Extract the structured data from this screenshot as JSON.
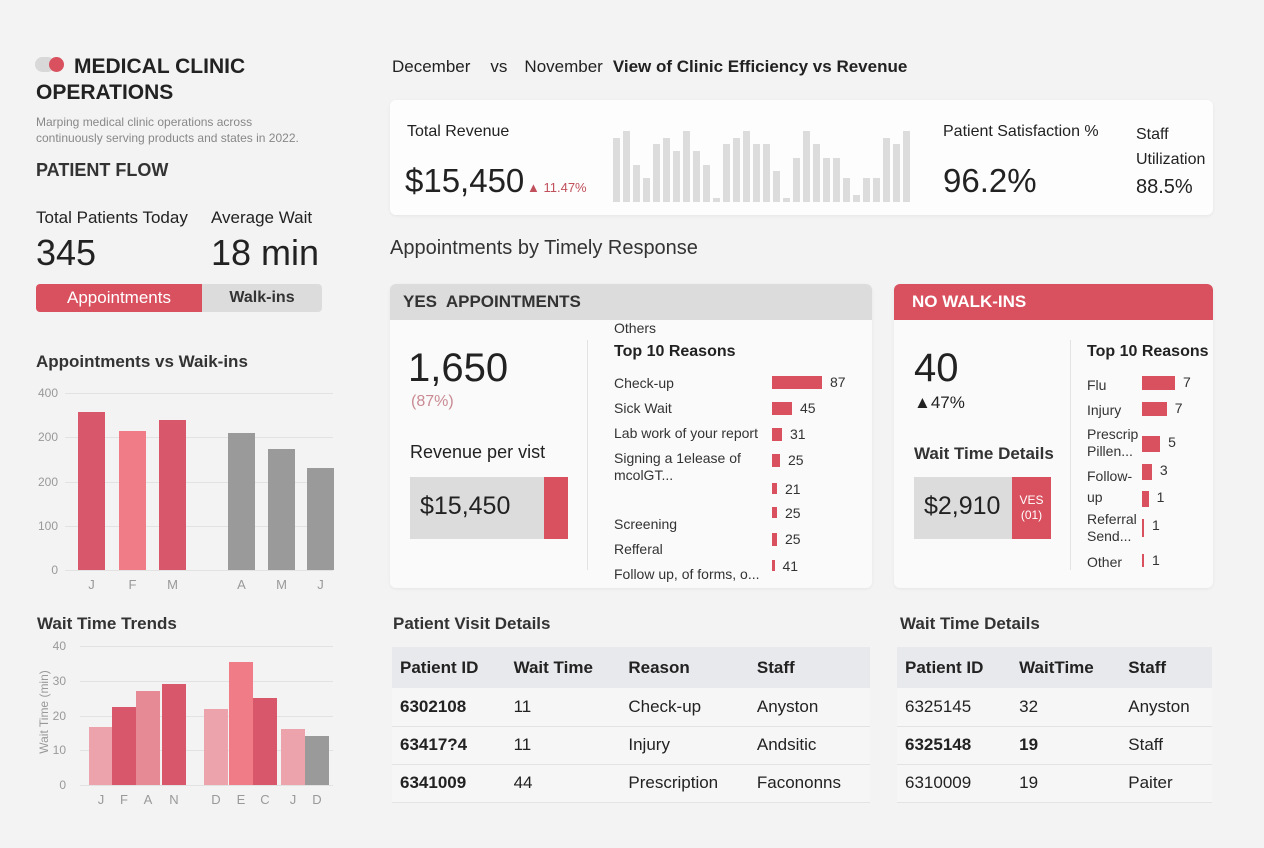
{
  "brand": {
    "title_line1": "MEDICAL CLINIC",
    "title_line2": "OPERATIONS",
    "subtitle_line1": "Marping medical clinic operations across",
    "subtitle_line2": "continuously serving products and states in 2022."
  },
  "patient_flow": {
    "heading": "PATIENT FLOW",
    "total_label": "Total Patients Today",
    "total_value": "345",
    "wait_label": "Average Wait",
    "wait_value": "18 min",
    "toggle": [
      "Appointments",
      "Walk-ins"
    ],
    "toggle_active": "Appointments"
  },
  "colors": {
    "accent": "#d9505e",
    "gray": "#9a9a9a",
    "light_pink": "#eca3ab",
    "pink": "#f07c87",
    "header_gray": "#dcdcdc"
  },
  "header": {
    "left": "December",
    "vs": "vs",
    "right": "November",
    "title": "View of Clinic Efficiency vs Revenue"
  },
  "kpis": {
    "revenue_label": "Total Revenue",
    "revenue_value": "$15,450",
    "revenue_change": "▲ 11.47%",
    "satisfaction_label": "Patient Satisfaction %",
    "satisfaction_value": "96.2%",
    "staff_label1": "Staff",
    "staff_label2": "Utilization",
    "staff_value": "88.5%",
    "sparkline": [
      9,
      10,
      5,
      3,
      8,
      9,
      7,
      10,
      7,
      5,
      0,
      8,
      9,
      10,
      8,
      8,
      4,
      0,
      6,
      10,
      8,
      6,
      6,
      3,
      0.5,
      3,
      3,
      9,
      8,
      10
    ]
  },
  "section_title": "Appointments by Timely Response",
  "yes_panel": {
    "header": "YES  APPOINTMENTS",
    "value": "1,650",
    "pct": "(87%)",
    "rpv_label": "Revenue per vist",
    "rpv_value": "$15,450",
    "reasons_title": "Top 10 Reasons",
    "reasons": [
      {
        "label": "Check-up",
        "value": "87",
        "bar": 1
      },
      {
        "label": "Sick Wait",
        "value": "45",
        "bar": 0.4
      },
      {
        "label": "Lab work of your report",
        "value": "31",
        "bar": 0.2
      },
      {
        "label": "Signing a 1elease of mcolGT...",
        "value": "25",
        "bar": 0.16
      },
      {
        "label": "",
        "value": "21",
        "bar": 0.1
      },
      {
        "label": "Screening",
        "value": "25",
        "bar": 0.1
      },
      {
        "label": "Refferal",
        "value": "25",
        "bar": 0.1
      },
      {
        "label": "Follow up, of forms, o...",
        "value": "41",
        "bar": 0.05
      },
      {
        "label": "Others",
        "value": "",
        "bar": 0
      }
    ]
  },
  "no_panel": {
    "header": "NO WALK-INS",
    "value": "40",
    "change": "▲47%",
    "wtd_label": "Wait Time Details",
    "wtd_value": "$2,910",
    "badge_line1": "VES",
    "badge_line2": "(01)",
    "reasons_title": "Top 10 Reasons",
    "reasons": [
      {
        "label": "Flu",
        "value": "7",
        "bar": 1
      },
      {
        "label": "Injury",
        "value": "7",
        "bar": 0.75
      },
      {
        "label": "Prescrip Pillen...",
        "value": "5",
        "bar": 0.55
      },
      {
        "label": "Follow-",
        "value": "3",
        "bar": 0.3
      },
      {
        "label": "up",
        "value": "1",
        "bar": 0.2
      },
      {
        "label": "Referral Send...",
        "value": "1",
        "bar": 0.03
      },
      {
        "label": "Other",
        "value": "1",
        "bar": 0
      }
    ]
  },
  "visit_table": {
    "title": "Patient Visit Details",
    "columns": [
      "Patient ID",
      "Wait Time",
      "Reason",
      "Staff"
    ],
    "rows": [
      [
        "6302108",
        "11",
        "Check-up",
        "Anyston"
      ],
      [
        "63417?4",
        "11",
        "Injury",
        "Andsitic"
      ],
      [
        "6341009",
        "44",
        "Prescription",
        "Facononns"
      ]
    ]
  },
  "wait_table": {
    "title": "Wait Time Details",
    "columns": [
      "Patient ID",
      "WaitTime",
      "Staff"
    ],
    "rows": [
      [
        "6325145",
        "32",
        "Anyston"
      ],
      [
        "6325148",
        "19",
        "Staff"
      ],
      [
        "6310009",
        "19",
        "Paiter"
      ]
    ]
  },
  "chart_data": [
    {
      "type": "bar",
      "title": "Appointments vs Waik-ins",
      "yticks": [
        "400",
        "200",
        "200",
        "100",
        "0"
      ],
      "ylim": [
        0,
        400
      ],
      "categories": [
        "J",
        "F",
        "M",
        "A",
        "M",
        "J"
      ],
      "values": [
        357,
        314,
        339,
        310,
        274,
        231
      ],
      "colors": [
        "#d9576a",
        "#f07c87",
        "#d9576a",
        "#9a9a9a",
        "#9a9a9a",
        "#9a9a9a"
      ],
      "grid": true
    },
    {
      "type": "bar",
      "title": "Wait Time Trends",
      "ylabel": "Wait Time (min)",
      "yticks": [
        "40",
        "30",
        "20",
        "10",
        "0"
      ],
      "ylim": [
        0,
        40
      ],
      "categories": [
        "J",
        "F",
        "A",
        "N",
        "D",
        "E",
        "C",
        "J",
        "D"
      ],
      "values": [
        16.7,
        22.5,
        27,
        29,
        22,
        35.5,
        25,
        16,
        14
      ],
      "colors": [
        "#eca3ab",
        "#d9576a",
        "#e68a96",
        "#d9576a",
        "#eca3ab",
        "#f07c87",
        "#d9576a",
        "#eca3ab",
        "#9a9a9a"
      ],
      "grid": true
    }
  ]
}
